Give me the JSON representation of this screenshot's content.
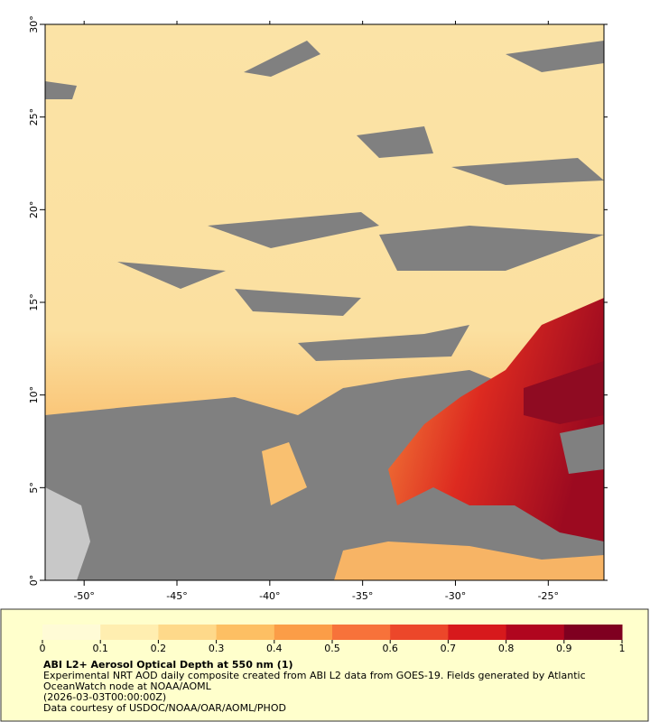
{
  "map": {
    "xlim": [
      -52.1,
      -22.0
    ],
    "ylim": [
      0,
      30
    ],
    "xticks": [
      {
        "value": -50,
        "label": "-50°"
      },
      {
        "value": -45,
        "label": "-45°"
      },
      {
        "value": -40,
        "label": "-40°"
      },
      {
        "value": -35,
        "label": "-35°"
      },
      {
        "value": -30,
        "label": "-30°"
      },
      {
        "value": -25,
        "label": "-25°"
      }
    ],
    "yticks": [
      {
        "value": 0,
        "label": "0°"
      },
      {
        "value": 5,
        "label": "5°"
      },
      {
        "value": 10,
        "label": "10°"
      },
      {
        "value": 15,
        "label": "15°"
      },
      {
        "value": 20,
        "label": "20°"
      },
      {
        "value": 25,
        "label": "25°"
      },
      {
        "value": 30,
        "label": "30°"
      }
    ]
  },
  "colorbar": {
    "lim": [
      0,
      1
    ],
    "ticks": [
      0,
      0.1,
      0.2,
      0.3,
      0.4,
      0.5,
      0.6,
      0.7,
      0.8,
      0.9,
      1
    ],
    "colors": [
      "#fffbd6",
      "#ffeeb0",
      "#fed98a",
      "#fdbf63",
      "#fb9d47",
      "#f7723a",
      "#ec472a",
      "#d7191c",
      "#b0061f",
      "#7f0020"
    ]
  },
  "caption": {
    "title": "ABI L2+ Aerosol Optical Depth at 550 nm (1)",
    "description": "Experimental NRT AOD daily composite created from ABI L2 data from GOES-19. Fields generated by Atlantic OceanWatch node at NOAA/AOML",
    "time": "(2026-03-03T00:00:00Z)",
    "credit": "Data courtesy of USDOC/NOAA/OAR/AOML/PHOD"
  }
}
